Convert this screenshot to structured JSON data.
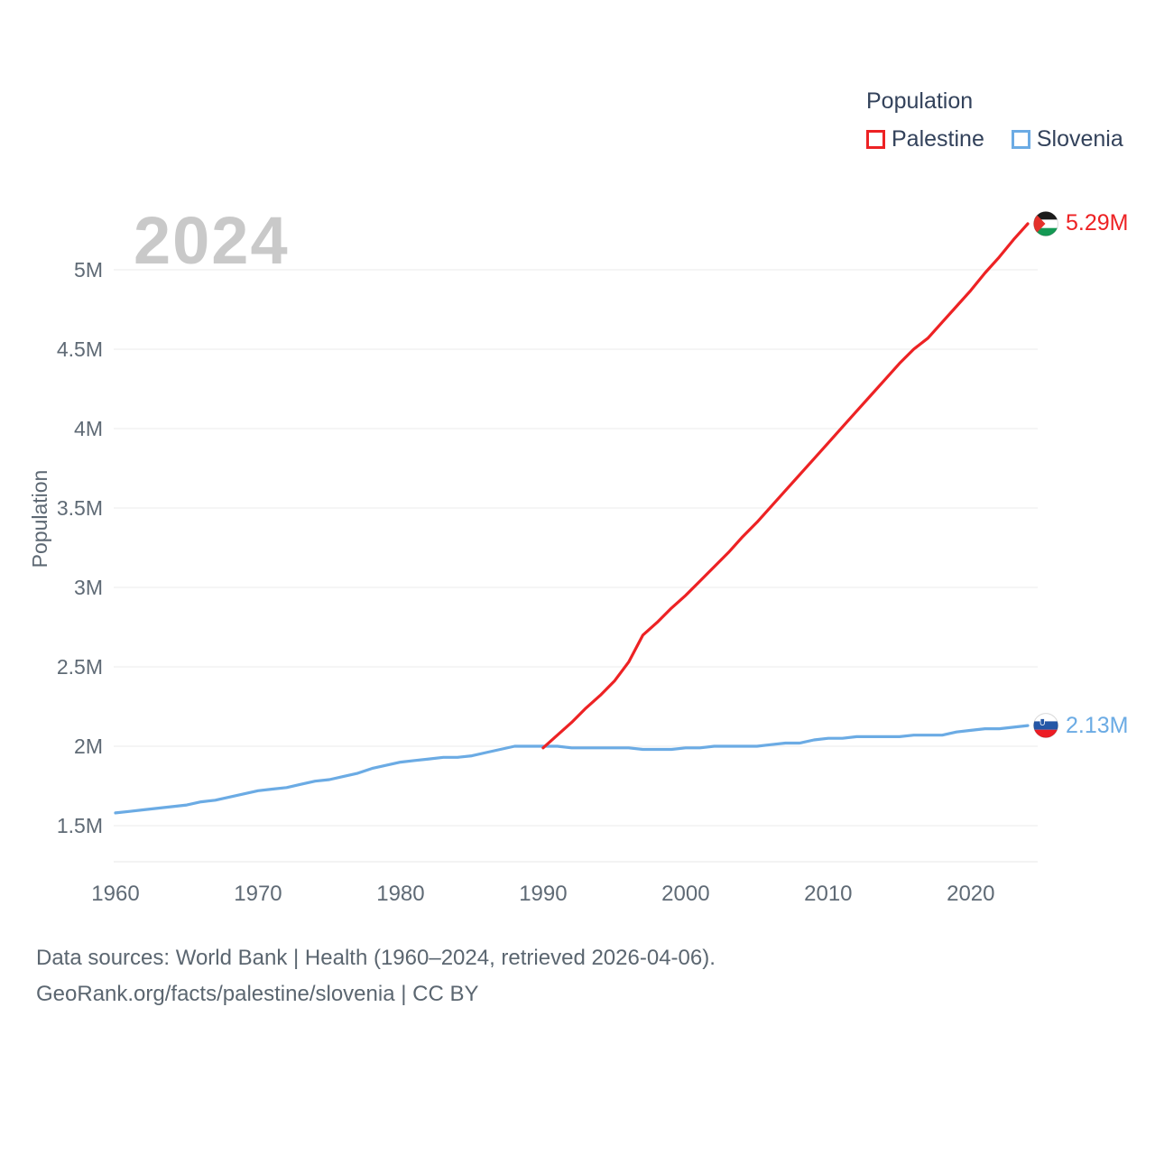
{
  "legend": {
    "title": "Population",
    "items": [
      {
        "label": "Palestine",
        "color": "#ed2224"
      },
      {
        "label": "Slovenia",
        "color": "#6babe4"
      }
    ]
  },
  "watermark": "2024",
  "footer": {
    "line1": "Data sources: World Bank | Health (1960–2024, retrieved 2026-04-06).",
    "line2": "GeoRank.org/facts/palestine/slovenia | CC BY"
  },
  "chart_data": {
    "type": "line",
    "title": "Population",
    "xlabel": "",
    "ylabel": "Population",
    "grid": true,
    "legend_position": "top-right",
    "xlim": [
      1958.5,
      2026
    ],
    "ylim": [
      1.25,
      5.35
    ],
    "x_ticks": [
      1960,
      1970,
      1980,
      1990,
      2000,
      2010,
      2020
    ],
    "y_ticks": [
      {
        "value": 1.5,
        "label": "1.5M"
      },
      {
        "value": 2,
        "label": "2M"
      },
      {
        "value": 2.5,
        "label": "2.5M"
      },
      {
        "value": 3,
        "label": "3M"
      },
      {
        "value": 3.5,
        "label": "3.5M"
      },
      {
        "value": 4,
        "label": "4M"
      },
      {
        "value": 4.5,
        "label": "4.5M"
      },
      {
        "value": 5,
        "label": "5M"
      }
    ],
    "series": [
      {
        "name": "Palestine",
        "color": "#ed2224",
        "end_label": "5.29M",
        "flag": "palestine",
        "x": [
          1990,
          1991,
          1992,
          1993,
          1994,
          1995,
          1996,
          1997,
          1998,
          1999,
          2000,
          2001,
          2002,
          2003,
          2004,
          2005,
          2006,
          2007,
          2008,
          2009,
          2010,
          2011,
          2012,
          2013,
          2014,
          2015,
          2016,
          2017,
          2018,
          2019,
          2020,
          2021,
          2022,
          2023,
          2024
        ],
        "values": [
          1.99,
          2.07,
          2.15,
          2.24,
          2.32,
          2.41,
          2.53,
          2.7,
          2.78,
          2.87,
          2.95,
          3.04,
          3.13,
          3.22,
          3.32,
          3.41,
          3.51,
          3.61,
          3.71,
          3.81,
          3.91,
          4.01,
          4.11,
          4.21,
          4.31,
          4.41,
          4.5,
          4.57,
          4.67,
          4.77,
          4.87,
          4.98,
          5.08,
          5.19,
          5.29
        ]
      },
      {
        "name": "Slovenia",
        "color": "#6babe4",
        "end_label": "2.13M",
        "flag": "slovenia",
        "x": [
          1960,
          1961,
          1962,
          1963,
          1964,
          1965,
          1966,
          1967,
          1968,
          1969,
          1970,
          1971,
          1972,
          1973,
          1974,
          1975,
          1976,
          1977,
          1978,
          1979,
          1980,
          1981,
          1982,
          1983,
          1984,
          1985,
          1986,
          1987,
          1988,
          1989,
          1990,
          1991,
          1992,
          1993,
          1994,
          1995,
          1996,
          1997,
          1998,
          1999,
          2000,
          2001,
          2002,
          2003,
          2004,
          2005,
          2006,
          2007,
          2008,
          2009,
          2010,
          2011,
          2012,
          2013,
          2014,
          2015,
          2016,
          2017,
          2018,
          2019,
          2020,
          2021,
          2022,
          2023,
          2024
        ],
        "values": [
          1.58,
          1.59,
          1.6,
          1.61,
          1.62,
          1.63,
          1.65,
          1.66,
          1.68,
          1.7,
          1.72,
          1.73,
          1.74,
          1.76,
          1.78,
          1.79,
          1.81,
          1.83,
          1.86,
          1.88,
          1.9,
          1.91,
          1.92,
          1.93,
          1.93,
          1.94,
          1.96,
          1.98,
          2.0,
          2.0,
          2.0,
          2.0,
          1.99,
          1.99,
          1.99,
          1.99,
          1.99,
          1.98,
          1.98,
          1.98,
          1.99,
          1.99,
          2.0,
          2.0,
          2.0,
          2.0,
          2.01,
          2.02,
          2.02,
          2.04,
          2.05,
          2.05,
          2.06,
          2.06,
          2.06,
          2.06,
          2.07,
          2.07,
          2.07,
          2.09,
          2.1,
          2.11,
          2.11,
          2.12,
          2.13
        ]
      }
    ]
  }
}
